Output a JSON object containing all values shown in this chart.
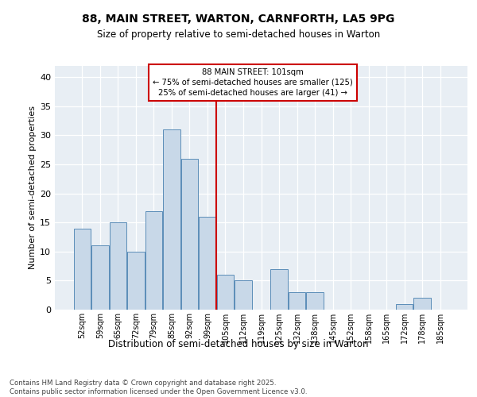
{
  "title1": "88, MAIN STREET, WARTON, CARNFORTH, LA5 9PG",
  "title2": "Size of property relative to semi-detached houses in Warton",
  "xlabel": "Distribution of semi-detached houses by size in Warton",
  "ylabel": "Number of semi-detached properties",
  "footnote": "Contains HM Land Registry data © Crown copyright and database right 2025.\nContains public sector information licensed under the Open Government Licence v3.0.",
  "categories": [
    "52sqm",
    "59sqm",
    "65sqm",
    "72sqm",
    "79sqm",
    "85sqm",
    "92sqm",
    "99sqm",
    "105sqm",
    "112sqm",
    "119sqm",
    "125sqm",
    "132sqm",
    "138sqm",
    "145sqm",
    "152sqm",
    "158sqm",
    "165sqm",
    "172sqm",
    "178sqm",
    "185sqm"
  ],
  "values": [
    14,
    11,
    15,
    10,
    17,
    31,
    26,
    16,
    6,
    5,
    0,
    7,
    3,
    3,
    0,
    0,
    0,
    0,
    1,
    2,
    0
  ],
  "bar_color": "#c8d8e8",
  "bar_edge_color": "#5b8db8",
  "annotation_title": "88 MAIN STREET: 101sqm",
  "annotation_line1": "← 75% of semi-detached houses are smaller (125)",
  "annotation_line2": "25% of semi-detached houses are larger (41) →",
  "annotation_box_color": "#cc0000",
  "ylim": [
    0,
    42
  ],
  "background_color": "#e8eef4",
  "line_x_index": 7.5
}
